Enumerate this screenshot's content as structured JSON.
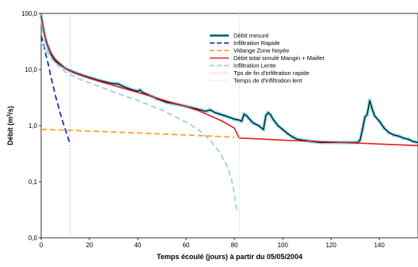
{
  "chart_data": {
    "type": "line",
    "title": "",
    "xlabel": "Temps écoulé (jours) à partir du 05/05/2004",
    "ylabel_main": "Débit (m",
    "ylabel_sup": "3",
    "ylabel_end": "/s)",
    "x_scale": "linear",
    "y_scale": "log",
    "xlim": [
      0,
      156
    ],
    "ylim": [
      0.01,
      100
    ],
    "x_ticks": [
      0,
      20,
      40,
      60,
      80,
      100,
      120,
      140
    ],
    "x_tick_labels": [
      "0",
      "20",
      "40",
      "60",
      "80",
      "100",
      "120",
      "140"
    ],
    "y_ticks": [
      0.01,
      0.1,
      1,
      10,
      100
    ],
    "y_tick_labels": [
      "0,0",
      "0,1",
      "1,0",
      "10,0",
      "100,0"
    ],
    "grid": false,
    "legend_position": "top-right",
    "series": [
      {
        "name": "Débit mesuré",
        "color": "#000000",
        "style": "solid-with-markers",
        "marker_color": "#7fd8e8",
        "x": [
          0,
          1,
          2,
          3,
          4,
          5,
          6,
          8,
          10,
          12,
          14,
          16,
          18,
          20,
          22,
          24,
          26,
          28,
          30,
          32,
          34,
          36,
          38,
          40,
          41,
          42,
          44,
          46,
          48,
          50,
          52,
          54,
          56,
          58,
          60,
          62,
          64,
          66,
          68,
          70,
          72,
          74,
          76,
          78,
          80,
          82,
          83,
          84,
          85,
          86,
          87,
          88,
          90,
          92,
          93,
          94,
          95,
          96,
          98,
          100,
          102,
          104,
          106,
          108,
          110,
          112,
          114,
          116,
          118,
          120,
          122,
          124,
          126,
          128,
          130,
          131,
          132,
          133,
          134,
          135,
          136,
          137,
          138,
          140,
          142,
          144,
          146,
          148,
          150,
          152,
          154,
          156
        ],
        "y": [
          90,
          50,
          32,
          24,
          19,
          16,
          14,
          12,
          10.5,
          9.6,
          8.8,
          8.2,
          7.7,
          7.2,
          6.8,
          6.4,
          6.1,
          5.8,
          5.6,
          5.5,
          5.0,
          4.6,
          4.3,
          4.1,
          4.3,
          3.9,
          3.6,
          3.3,
          3.0,
          2.8,
          2.6,
          2.5,
          2.4,
          2.3,
          2.2,
          2.1,
          2.0,
          1.9,
          1.8,
          1.9,
          1.7,
          1.6,
          1.5,
          1.4,
          1.3,
          1.25,
          1.2,
          1.6,
          1.5,
          1.35,
          1.2,
          1.1,
          1.0,
          0.85,
          1.5,
          1.7,
          1.55,
          1.3,
          1.0,
          0.85,
          0.72,
          0.63,
          0.57,
          0.55,
          0.54,
          0.52,
          0.51,
          0.5,
          0.5,
          0.5,
          0.5,
          0.5,
          0.5,
          0.5,
          0.5,
          0.5,
          0.55,
          0.85,
          1.4,
          1.6,
          2.8,
          2.0,
          1.5,
          1.2,
          0.9,
          0.75,
          0.68,
          0.65,
          0.6,
          0.57,
          0.52,
          0.5
        ]
      },
      {
        "name": "Infiltration Rapide",
        "color": "#1c2fb3",
        "style": "dashed",
        "x": [
          0,
          1,
          2,
          3,
          4,
          5,
          6,
          7,
          8,
          9,
          10,
          11,
          12
        ],
        "y": [
          40,
          28,
          18,
          12,
          7.5,
          5,
          3.3,
          2.3,
          1.6,
          1.15,
          0.85,
          0.63,
          0.45
        ]
      },
      {
        "name": "Vidange Zone Noyée",
        "color": "#f5a52a",
        "style": "dashed",
        "x": [
          0,
          20,
          40,
          60,
          80
        ],
        "y": [
          0.86,
          0.8,
          0.74,
          0.68,
          0.62
        ]
      },
      {
        "name": "Débit total simulé Mangin + Maillet",
        "color": "#e31a1c",
        "style": "solid",
        "x": [
          0,
          1,
          2,
          3,
          4,
          5,
          6,
          8,
          10,
          12,
          15,
          20,
          25,
          30,
          35,
          40,
          45,
          50,
          55,
          60,
          65,
          70,
          75,
          80,
          82,
          90,
          100,
          110,
          120,
          130,
          140,
          150,
          156
        ],
        "y": [
          92,
          50,
          33,
          25,
          20,
          17,
          15,
          12.5,
          10.5,
          9.3,
          8.3,
          7.0,
          6.0,
          5.2,
          4.5,
          3.9,
          3.4,
          2.9,
          2.5,
          2.2,
          1.85,
          1.5,
          1.2,
          0.9,
          0.6,
          0.58,
          0.55,
          0.53,
          0.51,
          0.49,
          0.47,
          0.45,
          0.44
        ]
      },
      {
        "name": "Infiltration Lente",
        "color": "#9fcbea",
        "style": "dashed",
        "x": [
          0,
          5,
          10,
          15,
          20,
          30,
          40,
          50,
          60,
          65,
          70,
          74,
          77,
          79,
          80,
          81
        ],
        "y": [
          30,
          14,
          9.0,
          7.0,
          5.8,
          4.0,
          2.8,
          1.9,
          1.15,
          0.85,
          0.55,
          0.33,
          0.19,
          0.1,
          0.06,
          0.03
        ]
      },
      {
        "name": "Tps de fin d'infiltration rapide",
        "color": "#d9a0b8",
        "style": "dotted-vertical",
        "x": [
          12,
          12
        ],
        "y": [
          0.01,
          100
        ]
      },
      {
        "name": "Temps de d'infiltration lent",
        "color": "#a8dde6",
        "style": "dotted-vertical",
        "x": [
          82,
          82
        ],
        "y": [
          0.01,
          100
        ]
      }
    ]
  }
}
